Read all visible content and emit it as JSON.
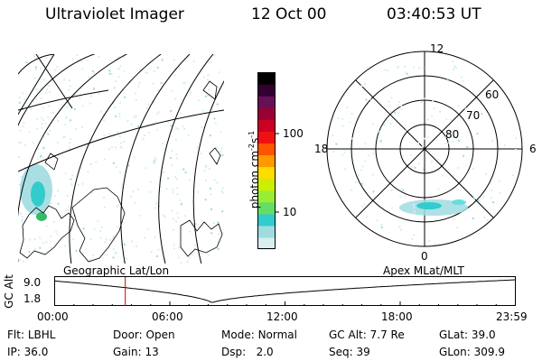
{
  "header": {
    "instrument": "Ultraviolet Imager",
    "date": "12 Oct 00",
    "time": "03:40:53 UT"
  },
  "colorbar": {
    "label": "photon cm",
    "label_sup1": "-2",
    "label_mid": "s",
    "label_sup2": "-1",
    "ticks": [
      "100",
      "10"
    ],
    "tick_values": [
      100,
      10
    ],
    "colors_bottom_to_top": [
      "#d8eef0",
      "#9fdce0",
      "#33cccc",
      "#66dd66",
      "#99ee33",
      "#ccee00",
      "#ffdd00",
      "#ff9900",
      "#ff5500",
      "#ee1111",
      "#cc0022",
      "#990033",
      "#661155",
      "#330033",
      "#000000"
    ]
  },
  "geo_panel": {
    "label": "Geographic Lat/Lon"
  },
  "polar_panel": {
    "label": "Apex MLat/MLT",
    "mlt_labels": {
      "top": "12",
      "left": "18",
      "right": "6",
      "bottom": "0"
    },
    "lat_labels": [
      "60",
      "70",
      "80"
    ]
  },
  "altitude_plot": {
    "ylabel": "GC Alt",
    "y_ticks": [
      "9.0",
      "1.8"
    ],
    "x_ticks": [
      "00:00",
      "06:00",
      "12:00",
      "18:00",
      "23:59"
    ],
    "marker_time_hours": 3.68,
    "marker_color": "#cc0000",
    "orbit_min_time_hours": 8.2
  },
  "info": {
    "flt_label": "Flt:",
    "flt_value": "LBHL",
    "door_label": "Door:",
    "door_value": "Open",
    "mode_label": "Mode:",
    "mode_value": "Normal",
    "gcalt_label": "GC Alt:",
    "gcalt_value": "7.7 Re",
    "glat_label": "GLat:",
    "glat_value": "39.0",
    "ip_label": "IP:",
    "ip_value": "36.0",
    "gain_label": "Gain:",
    "gain_value": "13",
    "dsp_label": "Dsp:",
    "dsp_value": "2.0",
    "seq_label": "Seq:",
    "seq_value": "39",
    "glon_label": "GLon:",
    "glon_value": "309.9"
  }
}
